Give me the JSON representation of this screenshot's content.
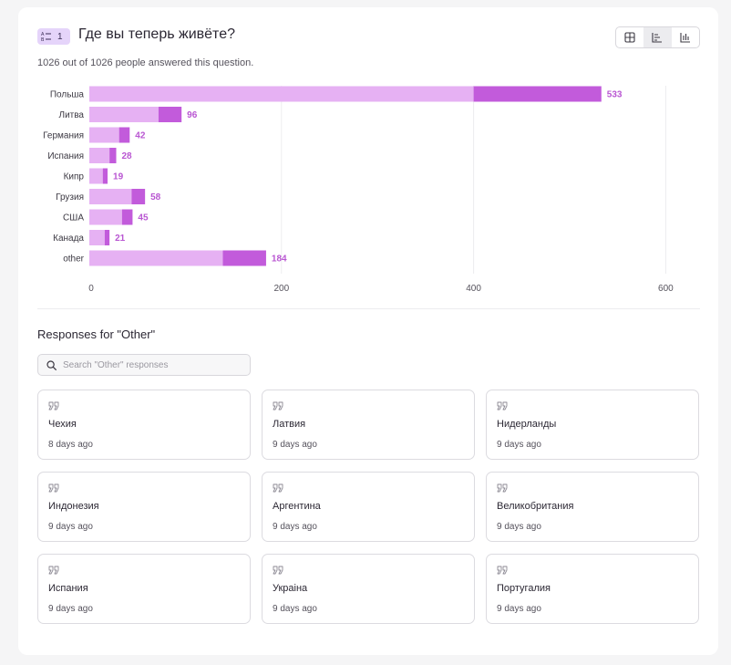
{
  "question": {
    "number": "1",
    "title": "Где вы теперь живёте?",
    "answered_text": "1026 out of 1026 people answered this question."
  },
  "view_switcher": {
    "options": [
      {
        "icon": "table-grid-icon",
        "active": false
      },
      {
        "icon": "horizontal-bar-chart-icon",
        "active": true
      },
      {
        "icon": "vertical-bar-chart-icon",
        "active": false
      }
    ]
  },
  "colors": {
    "bar_light": "#e6b1f3",
    "bar_dark": "#c25bdb",
    "value_label": "#b956d2",
    "grid": "#ececef",
    "badge_bg": "#e5d4fa"
  },
  "chart_data": {
    "type": "bar",
    "orientation": "horizontal",
    "categories": [
      "Польша",
      "Литва",
      "Германия",
      "Испания",
      "Кипр",
      "Грузия",
      "США",
      "Канада",
      "other"
    ],
    "series": [
      {
        "values": [
          400,
          72,
          31,
          21,
          14,
          44,
          34,
          16,
          139
        ]
      },
      {
        "values": [
          133,
          24,
          11,
          7,
          5,
          14,
          11,
          5,
          45
        ]
      }
    ],
    "totals": [
      533,
      96,
      42,
      28,
      19,
      58,
      45,
      21,
      184
    ],
    "xticks": [
      0,
      200,
      400,
      600
    ],
    "xlim": [
      0,
      600
    ],
    "grid": true,
    "title": "",
    "xlabel": "",
    "ylabel": ""
  },
  "responses": {
    "title": "Responses for \"Other\"",
    "search_placeholder": "Search \"Other\" responses",
    "items": [
      {
        "answer": "Чехия",
        "time": "8 days ago"
      },
      {
        "answer": "Латвия",
        "time": "9 days ago"
      },
      {
        "answer": "Нидерланды",
        "time": "9 days ago"
      },
      {
        "answer": "Индонезия",
        "time": "9 days ago"
      },
      {
        "answer": "Аргентина",
        "time": "9 days ago"
      },
      {
        "answer": "Великобритания",
        "time": "9 days ago"
      },
      {
        "answer": "Испания",
        "time": "9 days ago"
      },
      {
        "answer": "Украіна",
        "time": "9 days ago"
      },
      {
        "answer": "Португалия",
        "time": "9 days ago"
      }
    ]
  }
}
